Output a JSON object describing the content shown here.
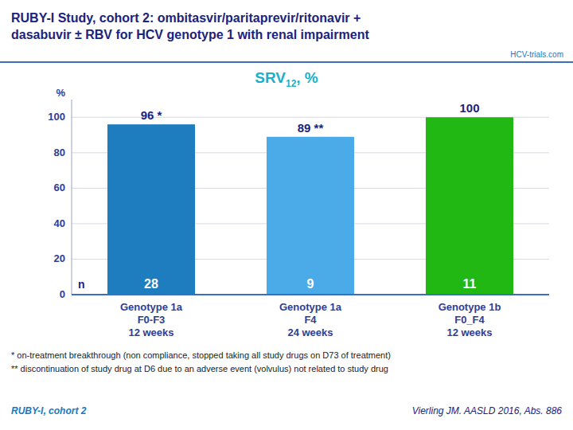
{
  "chart_data": {
    "type": "bar",
    "title": [
      "RUBY-I Study, cohort 2: ombitasvir/paritaprevir/ritonavir +",
      "dasabuvir ± RBV for HCV genotype 1 with renal impairment"
    ],
    "subtitle": {
      "text": "SRV",
      "subscript": "12",
      "suffix": ", %"
    },
    "ylabel": "%",
    "categories": [
      [
        "Genotype 1a",
        "F0-F3",
        "12 weeks"
      ],
      [
        "Genotype 1a",
        "F4",
        "24 weeks"
      ],
      [
        "Genotype 1b",
        "F0_F4",
        "12 weeks"
      ]
    ],
    "values": [
      96,
      89,
      100
    ],
    "value_labels": [
      "96 *",
      "89 **",
      "100"
    ],
    "data_labels": true,
    "n": [
      28,
      9,
      11
    ],
    "colors": [
      "#1e7dbf",
      "#4baae8",
      "#22b814"
    ],
    "ylim": [
      0,
      110
    ],
    "yticks": [
      0,
      20,
      40,
      60,
      80,
      100
    ],
    "grid": true,
    "annotations": [
      "HCV-trials.com",
      "n"
    ],
    "footnotes": [
      "* on-treatment breakthrough (non compliance, stopped taking all study drugs on  D73 of treatment)",
      "** discontinuation of study drug at D6 due to an adverse event (volvulus) not related to study drug"
    ],
    "footer": [
      "RUBY-I, cohort 2",
      "Vierling JM. AASLD 2016, Abs. 886"
    ]
  }
}
